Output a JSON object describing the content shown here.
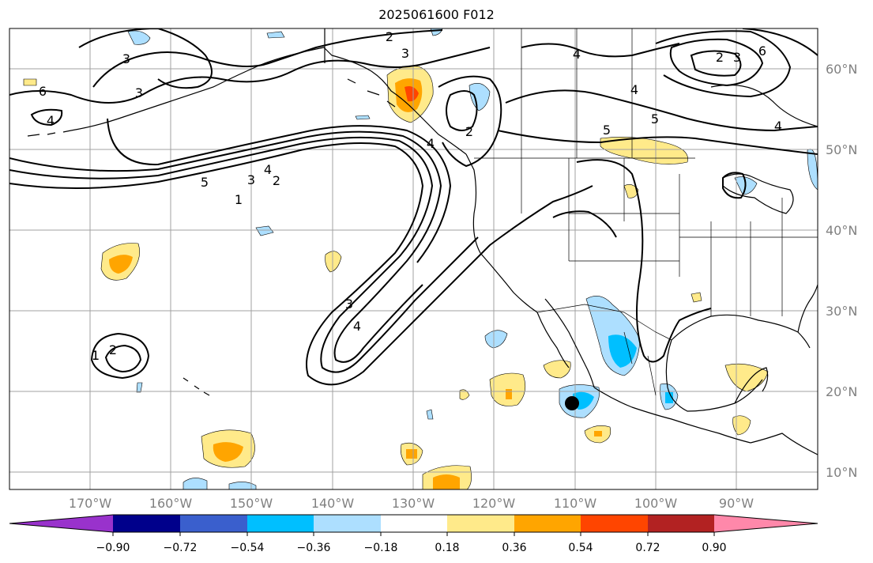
{
  "title": "2025061600 F012",
  "colors": {
    "land_line": "#000000",
    "grid": "#a0a0a0",
    "contour": "#000000",
    "marker": "#000000"
  },
  "lat_labels": [
    "60°N",
    "50°N",
    "40°N",
    "30°N",
    "20°N",
    "10°N"
  ],
  "lon_labels": [
    "170°W",
    "160°W",
    "150°W",
    "140°W",
    "130°W",
    "120°W",
    "110°W",
    "100°W",
    "90°W"
  ],
  "contour_labels": [
    "2",
    "3",
    "6",
    "4",
    "3",
    "3",
    "2",
    "5",
    "1",
    "4",
    "4",
    "5",
    "3",
    "2",
    "1",
    "5",
    "2",
    "3",
    "6",
    "4",
    "3",
    "4",
    "1",
    "2",
    "4",
    "4",
    "2"
  ],
  "colorbar": {
    "bins": [
      "#9932CC",
      "#00008B",
      "#3A5FCD",
      "#00BFFF",
      "#ADDFFF",
      "#FFFFFF",
      "#FFEA8A",
      "#FFA500",
      "#FF4500",
      "#B22222",
      "#FF88AA"
    ],
    "tick_labels": [
      "−0.90",
      "−0.72",
      "−0.54",
      "−0.36",
      "−0.18",
      "0.18",
      "0.36",
      "0.54",
      "0.72",
      "0.90"
    ]
  }
}
